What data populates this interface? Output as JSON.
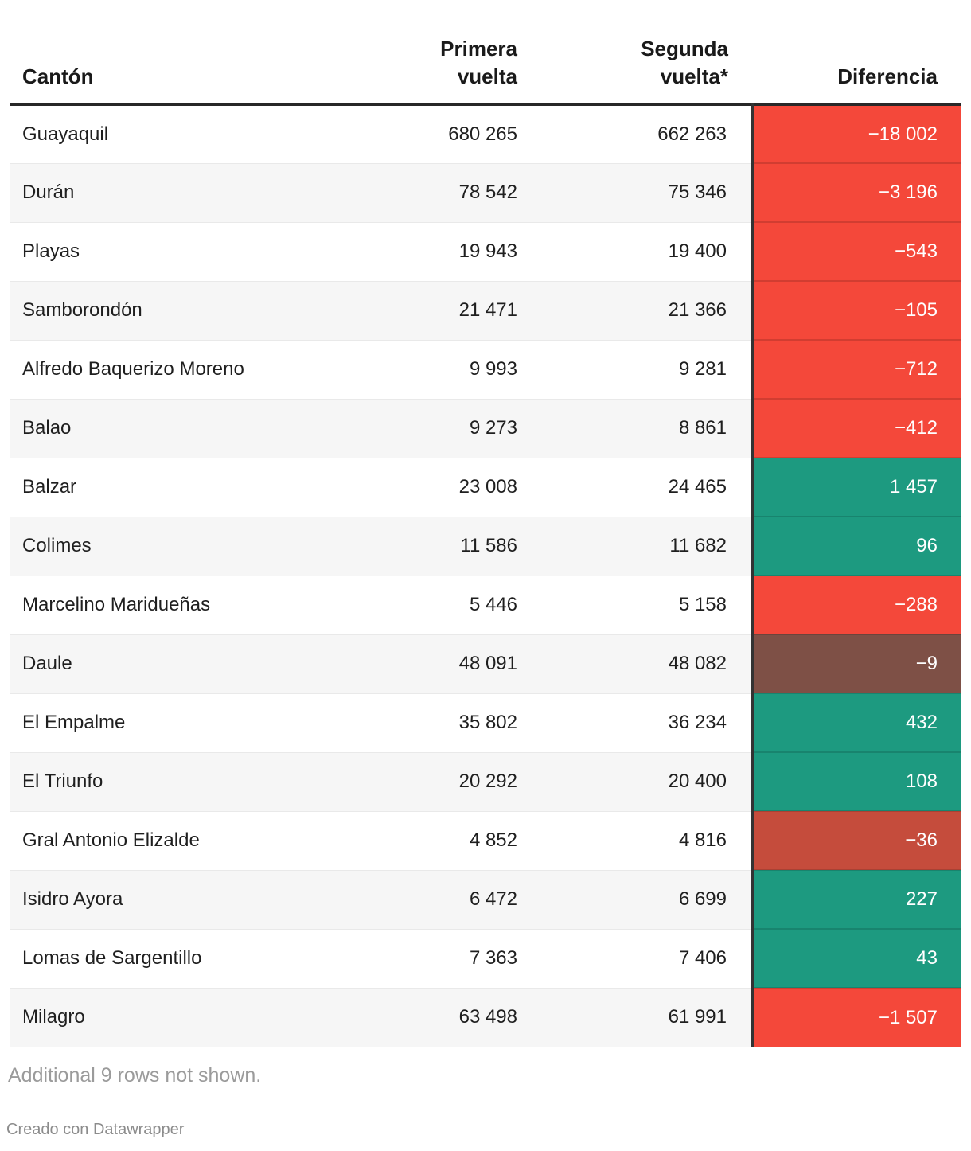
{
  "table_header": {
    "canton": "Cantón",
    "primera": "Primera\nvuelta",
    "segunda": "Segunda\nvuelta*",
    "diferencia": "Diferencia"
  },
  "chart_data": {
    "type": "table",
    "columns": [
      "Cantón",
      "Primera vuelta",
      "Segunda vuelta*",
      "Diferencia"
    ],
    "legend_colors": {
      "negative_strong": "#f4483a",
      "negative_medium": "#c54c3c",
      "negative_near_zero": "#7e5046",
      "positive": "#1d9a80"
    },
    "rows": [
      {
        "canton": "Guayaquil",
        "primera": 680265,
        "segunda": 662263,
        "diferencia": -18002,
        "primera_text": "680 265",
        "segunda_text": "662 263",
        "diferencia_text": "−18 002",
        "diff_color": "#f4483a"
      },
      {
        "canton": "Durán",
        "primera": 78542,
        "segunda": 75346,
        "diferencia": -3196,
        "primera_text": "78 542",
        "segunda_text": "75 346",
        "diferencia_text": "−3 196",
        "diff_color": "#f4483a"
      },
      {
        "canton": "Playas",
        "primera": 19943,
        "segunda": 19400,
        "diferencia": -543,
        "primera_text": "19 943",
        "segunda_text": "19 400",
        "diferencia_text": "−543",
        "diff_color": "#f4483a"
      },
      {
        "canton": "Samborondón",
        "primera": 21471,
        "segunda": 21366,
        "diferencia": -105,
        "primera_text": "21 471",
        "segunda_text": "21 366",
        "diferencia_text": "−105",
        "diff_color": "#f4483a"
      },
      {
        "canton": "Alfredo Baquerizo Moreno",
        "primera": 9993,
        "segunda": 9281,
        "diferencia": -712,
        "primera_text": "9 993",
        "segunda_text": "9 281",
        "diferencia_text": "−712",
        "diff_color": "#f4483a"
      },
      {
        "canton": "Balao",
        "primera": 9273,
        "segunda": 8861,
        "diferencia": -412,
        "primera_text": "9 273",
        "segunda_text": "8 861",
        "diferencia_text": "−412",
        "diff_color": "#f4483a"
      },
      {
        "canton": "Balzar",
        "primera": 23008,
        "segunda": 24465,
        "diferencia": 1457,
        "primera_text": "23 008",
        "segunda_text": "24 465",
        "diferencia_text": "1 457",
        "diff_color": "#1d9a80"
      },
      {
        "canton": "Colimes",
        "primera": 11586,
        "segunda": 11682,
        "diferencia": 96,
        "primera_text": "11 586",
        "segunda_text": "11 682",
        "diferencia_text": "96",
        "diff_color": "#1d9a80"
      },
      {
        "canton": "Marcelino Maridueñas",
        "primera": 5446,
        "segunda": 5158,
        "diferencia": -288,
        "primera_text": "5 446",
        "segunda_text": "5 158",
        "diferencia_text": "−288",
        "diff_color": "#f4483a"
      },
      {
        "canton": "Daule",
        "primera": 48091,
        "segunda": 48082,
        "diferencia": -9,
        "primera_text": "48 091",
        "segunda_text": "48 082",
        "diferencia_text": "−9",
        "diff_color": "#7e5046"
      },
      {
        "canton": "El Empalme",
        "primera": 35802,
        "segunda": 36234,
        "diferencia": 432,
        "primera_text": "35 802",
        "segunda_text": "36 234",
        "diferencia_text": "432",
        "diff_color": "#1d9a80"
      },
      {
        "canton": "El Triunfo",
        "primera": 20292,
        "segunda": 20400,
        "diferencia": 108,
        "primera_text": "20 292",
        "segunda_text": "20 400",
        "diferencia_text": "108",
        "diff_color": "#1d9a80"
      },
      {
        "canton": "Gral Antonio Elizalde",
        "primera": 4852,
        "segunda": 4816,
        "diferencia": -36,
        "primera_text": "4 852",
        "segunda_text": "4 816",
        "diferencia_text": "−36",
        "diff_color": "#c54c3c"
      },
      {
        "canton": "Isidro Ayora",
        "primera": 6472,
        "segunda": 6699,
        "diferencia": 227,
        "primera_text": "6 472",
        "segunda_text": "6 699",
        "diferencia_text": "227",
        "diff_color": "#1d9a80"
      },
      {
        "canton": "Lomas de Sargentillo",
        "primera": 7363,
        "segunda": 7406,
        "diferencia": 43,
        "primera_text": "7 363",
        "segunda_text": "7 406",
        "diferencia_text": "43",
        "diff_color": "#1d9a80"
      },
      {
        "canton": "Milagro",
        "primera": 63498,
        "segunda": 61991,
        "diferencia": -1507,
        "primera_text": "63 498",
        "segunda_text": "61 991",
        "diferencia_text": "−1 507",
        "diff_color": "#f4483a"
      }
    ]
  },
  "footer": {
    "note": "Additional 9 rows not shown.",
    "attribution": "Creado con Datawrapper"
  }
}
